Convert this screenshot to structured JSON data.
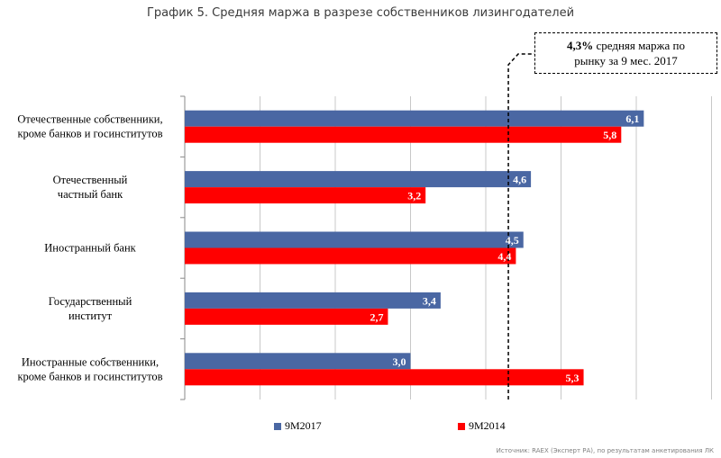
{
  "title": "График 5. Средняя маржа в разрезе собственников лизингодателей",
  "annotation": {
    "bold": "4,3%",
    "line1_rest": " средняя маржа по",
    "line2": "рынку за 9 мес. 2017"
  },
  "source": "Источник: RAEX (Эксперт РА), по результатам анкетирования ЛК",
  "colors": {
    "series1": "#4a67a3",
    "series2": "#ff0000",
    "grid": "#c8c8c8",
    "axis": "#8a8a8a"
  },
  "chart_data": {
    "type": "bar",
    "orientation": "horizontal",
    "categories": [
      [
        "Отечественные собственники,",
        "кроме банков и госинститутов"
      ],
      [
        "Отечественный",
        "частный банк"
      ],
      [
        "Иностранный банк"
      ],
      [
        "Государственный",
        "институт"
      ],
      [
        "Иностранные собственники,",
        "кроме банков и госинститутов"
      ]
    ],
    "series": [
      {
        "name": "9М2017",
        "values": [
          6.1,
          4.6,
          4.5,
          3.4,
          3.0
        ],
        "labels": [
          "6,1",
          "4,6",
          "4,5",
          "3,4",
          "3,0"
        ]
      },
      {
        "name": "9М2014",
        "values": [
          5.8,
          3.2,
          4.4,
          2.7,
          5.3
        ],
        "labels": [
          "5,8",
          "3,2",
          "4,4",
          "2,7",
          "5,3"
        ]
      }
    ],
    "reference_line": {
      "value": 4.3
    },
    "xlim": [
      0,
      7
    ],
    "grid": true,
    "legend": "bottom"
  }
}
